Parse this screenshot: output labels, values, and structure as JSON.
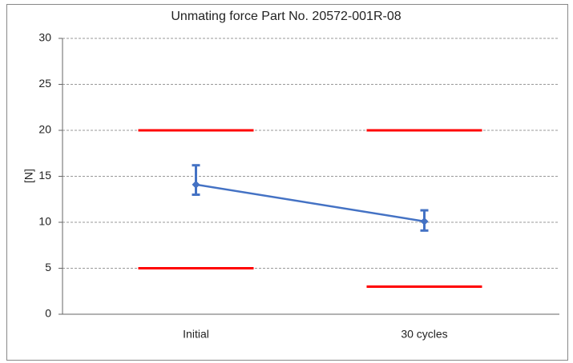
{
  "chart_data": {
    "type": "line",
    "title": "Unmating force Part No. 20572-001R-08",
    "ylabel": "[N]",
    "categories": [
      "Initial",
      "30 cycles"
    ],
    "series": [
      {
        "color": "#4472c4",
        "values": [
          14.1,
          10.1
        ],
        "max": [
          16.2,
          11.3
        ],
        "min": [
          13.0,
          9.1
        ]
      }
    ],
    "limits": [
      {
        "color": "#ff0000",
        "values": [
          20,
          20
        ]
      },
      {
        "color": "#ff0000",
        "values": [
          5,
          3
        ]
      }
    ],
    "ylim": [
      0,
      30
    ],
    "yticks": [
      0,
      5,
      10,
      15,
      20,
      25,
      30
    ],
    "grid": true
  }
}
